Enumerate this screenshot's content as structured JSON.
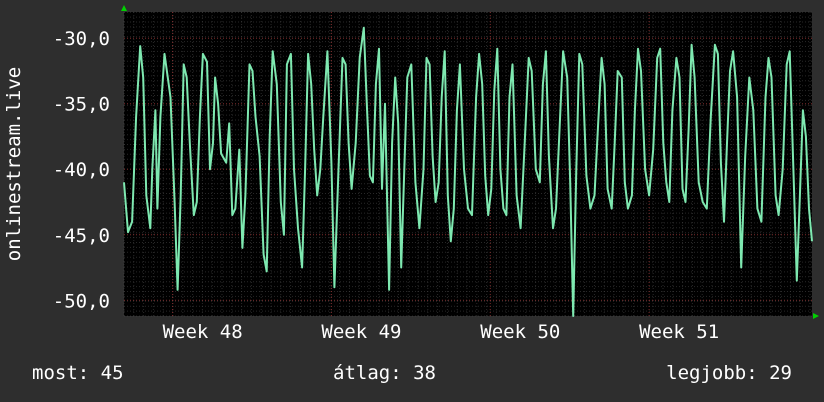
{
  "chart_data": {
    "type": "line",
    "ylabel": "onlinestream.live",
    "ylim": [
      -51.2,
      -28.0
    ],
    "yticks": [
      -30,
      -35,
      -40,
      -45,
      -50
    ],
    "ytick_labels": [
      "-30,0",
      "-35,0",
      "-40,0",
      "-45,0",
      "-50,0"
    ],
    "xlim": [
      0,
      680
    ],
    "xticks": [
      {
        "x": 48,
        "label": "Week 48"
      },
      {
        "x": 205,
        "label": "Week 49"
      },
      {
        "x": 362,
        "label": "Week 50"
      },
      {
        "x": 519,
        "label": "Week 51"
      }
    ],
    "grid": true,
    "series": [
      {
        "color": "#7ee8b0",
        "x": [
          0,
          4,
          8,
          12,
          16,
          19,
          22,
          26,
          28,
          31,
          33,
          36,
          40,
          46,
          50,
          53,
          56,
          59,
          62,
          65,
          69,
          72,
          75,
          78,
          82,
          85,
          88,
          90,
          93,
          96,
          101,
          104,
          107,
          110,
          114,
          117,
          120,
          124,
          127,
          130,
          134,
          138,
          141,
          144,
          147,
          151,
          155,
          158,
          161,
          165,
          168,
          172,
          176,
          179,
          182,
          185,
          188,
          191,
          194,
          197,
          201,
          205,
          208,
          212,
          216,
          219,
          222,
          225,
          229,
          233,
          237,
          240,
          243,
          246,
          249,
          252,
          255,
          258,
          262,
          265,
          268,
          271,
          274,
          277,
          280,
          284,
          288,
          292,
          296,
          299,
          302,
          305,
          308,
          311,
          314,
          317,
          320,
          323,
          326,
          329,
          332,
          336,
          340,
          344,
          348,
          351,
          354,
          357,
          360,
          363,
          366,
          369,
          372,
          375,
          378,
          381,
          384,
          388,
          392,
          396,
          400,
          403,
          407,
          411,
          414,
          417,
          420,
          424,
          427,
          431,
          434,
          438,
          441,
          444,
          447,
          450,
          453,
          457,
          461,
          465,
          469,
          472,
          475,
          478,
          482,
          485,
          488,
          492,
          495,
          498,
          502,
          505,
          508,
          511,
          515,
          519,
          523,
          527,
          530,
          533,
          536,
          539,
          542,
          546,
          549,
          552,
          555,
          558,
          561,
          564,
          568,
          572,
          576,
          580,
          584,
          587,
          590,
          593,
          596,
          599,
          602,
          606,
          610,
          614,
          618,
          622,
          626,
          630,
          634,
          637,
          640,
          644,
          647,
          651,
          655,
          658,
          662,
          665,
          668,
          671,
          674,
          677,
          680
        ],
        "y": [
          -41.0,
          -44.8,
          -44.0,
          -36.0,
          -30.6,
          -33.0,
          -42.0,
          -44.5,
          -40.0,
          -35.5,
          -43.0,
          -36.0,
          -31.2,
          -34.5,
          -42.5,
          -49.2,
          -42.0,
          -32.0,
          -33.0,
          -38.0,
          -43.5,
          -42.5,
          -36.0,
          -31.2,
          -31.8,
          -40.0,
          -38.0,
          -33.0,
          -35.0,
          -38.8,
          -39.5,
          -36.5,
          -43.5,
          -43.0,
          -38.5,
          -46.0,
          -42.0,
          -32.0,
          -32.5,
          -36.0,
          -39.0,
          -46.5,
          -47.8,
          -37.5,
          -31.0,
          -33.5,
          -42.5,
          -45.0,
          -32.0,
          -31.2,
          -40.0,
          -44.5,
          -47.5,
          -40.0,
          -31.2,
          -33.5,
          -38.5,
          -42.0,
          -40.0,
          -36.0,
          -31.0,
          -39.5,
          -49.0,
          -40.0,
          -31.5,
          -32.0,
          -38.0,
          -41.5,
          -38.0,
          -31.5,
          -29.2,
          -35.0,
          -40.5,
          -41.0,
          -33.5,
          -30.8,
          -41.5,
          -35.0,
          -49.2,
          -38.0,
          -33.0,
          -36.5,
          -47.5,
          -40.0,
          -33.0,
          -32.0,
          -41.0,
          -44.5,
          -40.0,
          -31.5,
          -32.0,
          -39.0,
          -42.5,
          -41.0,
          -34.5,
          -31.0,
          -42.0,
          -45.5,
          -43.0,
          -35.5,
          -32.0,
          -40.0,
          -43.0,
          -43.5,
          -34.5,
          -31.2,
          -33.5,
          -40.5,
          -43.5,
          -41.5,
          -34.0,
          -30.8,
          -40.0,
          -43.0,
          -43.5,
          -34.5,
          -32.0,
          -42.0,
          -44.5,
          -38.0,
          -31.5,
          -32.5,
          -40.0,
          -41.0,
          -33.5,
          -31.0,
          -39.0,
          -44.5,
          -43.0,
          -36.0,
          -31.0,
          -33.0,
          -41.0,
          -51.2,
          -40.0,
          -31.2,
          -32.0,
          -40.5,
          -43.0,
          -42.0,
          -36.0,
          -31.5,
          -33.5,
          -41.5,
          -43.0,
          -38.0,
          -32.5,
          -33.0,
          -41.0,
          -43.0,
          -42.0,
          -35.5,
          -30.8,
          -32.5,
          -40.0,
          -42.0,
          -38.5,
          -31.5,
          -30.8,
          -38.0,
          -41.0,
          -42.5,
          -35.5,
          -31.5,
          -33.0,
          -41.5,
          -42.5,
          -37.0,
          -30.5,
          -33.0,
          -41.0,
          -42.5,
          -43.0,
          -36.0,
          -30.5,
          -31.2,
          -39.5,
          -44.0,
          -38.0,
          -32.5,
          -31.0,
          -34.5,
          -47.5,
          -39.0,
          -33.0,
          -35.5,
          -43.0,
          -44.0,
          -34.5,
          -31.5,
          -33.0,
          -42.0,
          -43.5,
          -40.0,
          -32.0,
          -31.0,
          -41.0,
          -48.5,
          -42.0,
          -35.5,
          -37.5,
          -43.0,
          -45.5
        ]
      }
    ],
    "stats": {
      "now": "most: 45",
      "avg": "átlag: 38",
      "best": "legjobb: 29"
    }
  },
  "colors": {
    "background": "#2e2e2e",
    "plot_background": "#000000",
    "grid": "#4a4a4a",
    "line": "#7ee8b0",
    "axis_arrow": "#00d000",
    "text": "#ffffff"
  }
}
